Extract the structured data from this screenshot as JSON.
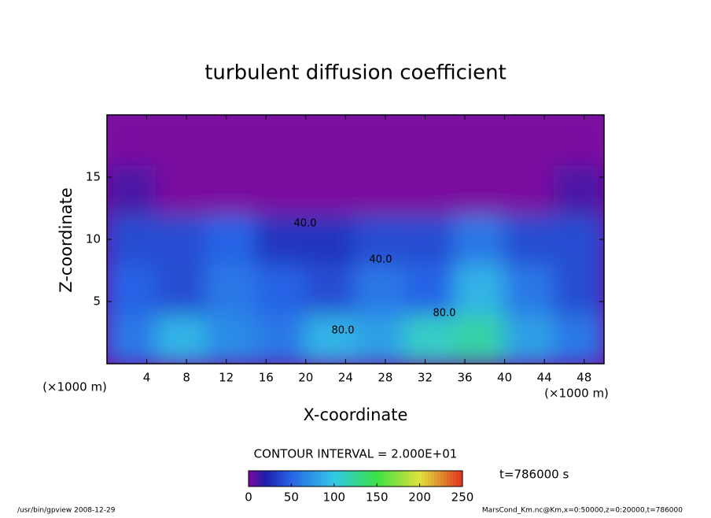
{
  "chart_data": {
    "type": "heatmap",
    "title": "turbulent diffusion coefficient",
    "xlabel": "X-coordinate",
    "ylabel": "Z-coordinate",
    "xunit": "(×1000 m)",
    "yunit": "(×1000 m)",
    "x": [
      2.5,
      7.5,
      12.5,
      17.5,
      22.5,
      27.5,
      32.5,
      37.5,
      42.5,
      47.5
    ],
    "y": [
      2,
      6,
      10,
      14,
      18
    ],
    "z": [
      [
        60,
        90,
        70,
        60,
        90,
        80,
        110,
        120,
        80,
        60
      ],
      [
        50,
        40,
        60,
        50,
        40,
        60,
        50,
        90,
        60,
        40
      ],
      [
        40,
        40,
        50,
        30,
        30,
        40,
        40,
        60,
        40,
        40
      ],
      [
        10,
        0,
        0,
        0,
        0,
        0,
        0,
        0,
        0,
        10
      ],
      [
        0,
        0,
        0,
        0,
        0,
        0,
        0,
        0,
        0,
        0
      ]
    ],
    "xlim": [
      0,
      50
    ],
    "ylim": [
      0,
      20
    ],
    "xticks": [
      4,
      8,
      12,
      16,
      20,
      24,
      28,
      32,
      36,
      40,
      44,
      48
    ],
    "yticks": [
      5,
      10,
      15
    ],
    "contour_labels": [
      "40.0",
      "40.0",
      "80.0",
      "80.0"
    ],
    "contour_interval": "CONTOUR INTERVAL = 2.000E+01",
    "time": "t=786000 s",
    "clim": [
      0,
      250
    ],
    "cticks": [
      0,
      50,
      100,
      150,
      200,
      250
    ],
    "footer_left": "/usr/bin/gpview   2008-12-29",
    "footer_right": "MarsCond_Km.nc@Km,x=0:50000,z=0:20000,t=786000"
  }
}
